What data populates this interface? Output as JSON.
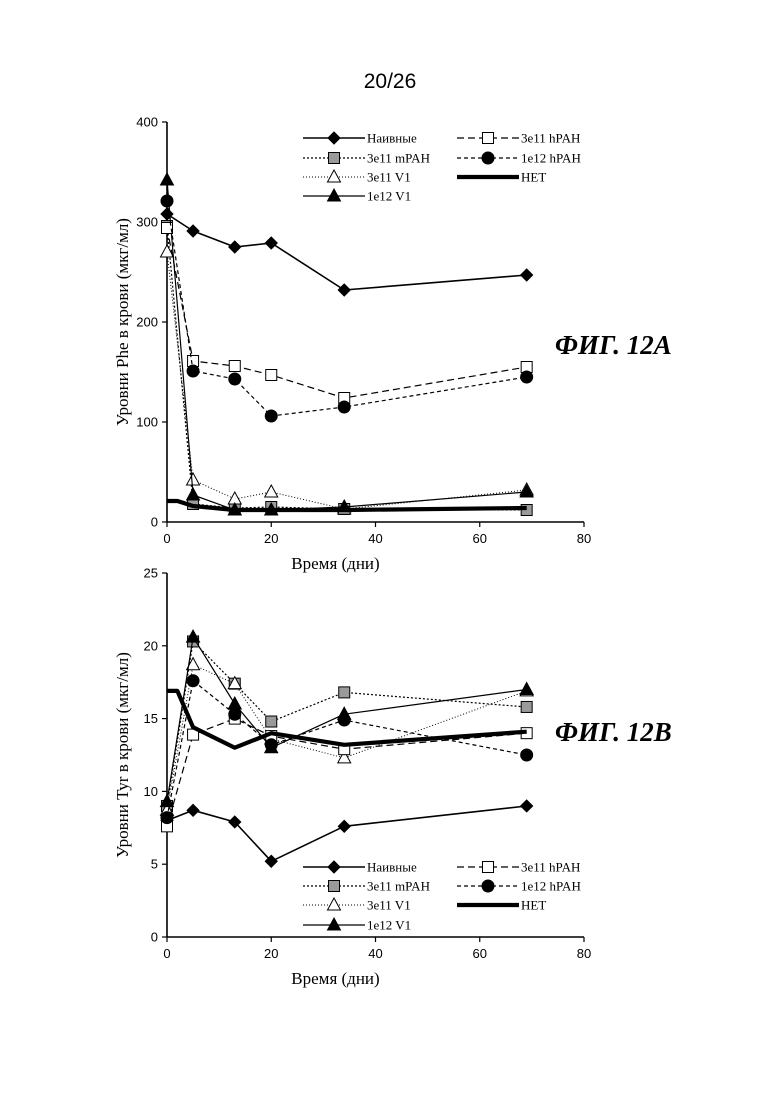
{
  "page": {
    "number": "20/26"
  },
  "chart_data": [
    {
      "type": "line",
      "figure_label": "ФИГ. 12A",
      "xlabel": "Время (дни)",
      "ylabel": "Уровни Phe в крови (мкг/мл)",
      "xlim": [
        0,
        80
      ],
      "ylim": [
        0,
        400
      ],
      "xticks": [
        "0",
        "20",
        "40",
        "60",
        "80"
      ],
      "yticks": [
        "0",
        "100",
        "200",
        "300",
        "400"
      ],
      "grid": false,
      "series": [
        {
          "name": "Наивные",
          "x": [
            0,
            5,
            13,
            20,
            34,
            69
          ],
          "values": [
            308,
            291,
            275,
            279,
            232,
            247
          ]
        },
        {
          "name": "3e11 mPAH",
          "x": [
            0,
            5,
            13,
            20,
            34,
            69
          ],
          "values": [
            296,
            18,
            14,
            15,
            13,
            12
          ]
        },
        {
          "name": "3e11 V1",
          "x": [
            0,
            5,
            13,
            20,
            34,
            69
          ],
          "values": [
            270,
            42,
            23,
            30,
            13,
            32
          ]
        },
        {
          "name": "1e12 V1",
          "x": [
            0,
            5,
            13,
            20,
            34,
            69
          ],
          "values": [
            342,
            27,
            12,
            12,
            15,
            30
          ]
        },
        {
          "name": "3e11 hPAH",
          "x": [
            0,
            5,
            13,
            20,
            34,
            69
          ],
          "values": [
            294,
            161,
            156,
            147,
            124,
            155
          ]
        },
        {
          "name": "1e12 hPAH",
          "x": [
            0,
            5,
            13,
            20,
            34,
            69
          ],
          "values": [
            321,
            151,
            143,
            106,
            115,
            145
          ]
        },
        {
          "name": "HET",
          "x": [
            0,
            2,
            5,
            13,
            20,
            34,
            69
          ],
          "values": [
            21,
            21,
            16,
            12,
            12,
            12,
            14
          ]
        }
      ]
    },
    {
      "type": "line",
      "figure_label": "ФИГ. 12B",
      "xlabel": "Время (дни)",
      "ylabel": "Уровни Tyr в крови (мкг/мл)",
      "xlim": [
        0,
        80
      ],
      "ylim": [
        0,
        25
      ],
      "xticks": [
        "0",
        "20",
        "40",
        "60",
        "80"
      ],
      "yticks": [
        "0",
        "5",
        "10",
        "15",
        "20",
        "25"
      ],
      "grid": false,
      "series": [
        {
          "name": "Наивные",
          "x": [
            0,
            5,
            13,
            20,
            34,
            69
          ],
          "values": [
            8.0,
            8.7,
            7.9,
            5.2,
            7.6,
            9.0
          ]
        },
        {
          "name": "3e11 mPAH",
          "x": [
            0,
            5,
            13,
            20,
            34,
            69
          ],
          "values": [
            9.0,
            20.3,
            17.4,
            14.8,
            16.8,
            15.8
          ]
        },
        {
          "name": "3e11 V1",
          "x": [
            0,
            5,
            13,
            20,
            34,
            69
          ],
          "values": [
            8.7,
            18.7,
            17.4,
            13.6,
            12.3,
            16.9
          ]
        },
        {
          "name": "1e12 V1",
          "x": [
            0,
            5,
            13,
            20,
            34,
            69
          ],
          "values": [
            9.3,
            20.6,
            16.0,
            13.0,
            15.3,
            17.0
          ]
        },
        {
          "name": "3e11 hPAH",
          "x": [
            0,
            5,
            13,
            20,
            34,
            69
          ],
          "values": [
            7.6,
            13.9,
            15.0,
            13.8,
            12.9,
            14.0
          ]
        },
        {
          "name": "1e12 hPAH",
          "x": [
            0,
            5,
            13,
            20,
            34,
            69
          ],
          "values": [
            8.2,
            17.6,
            15.3,
            13.2,
            14.9,
            12.5
          ]
        },
        {
          "name": "HET",
          "x": [
            0,
            2,
            5,
            13,
            20,
            34,
            69
          ],
          "values": [
            16.9,
            16.9,
            14.4,
            13.0,
            14.0,
            13.2,
            14.1
          ]
        }
      ]
    }
  ]
}
